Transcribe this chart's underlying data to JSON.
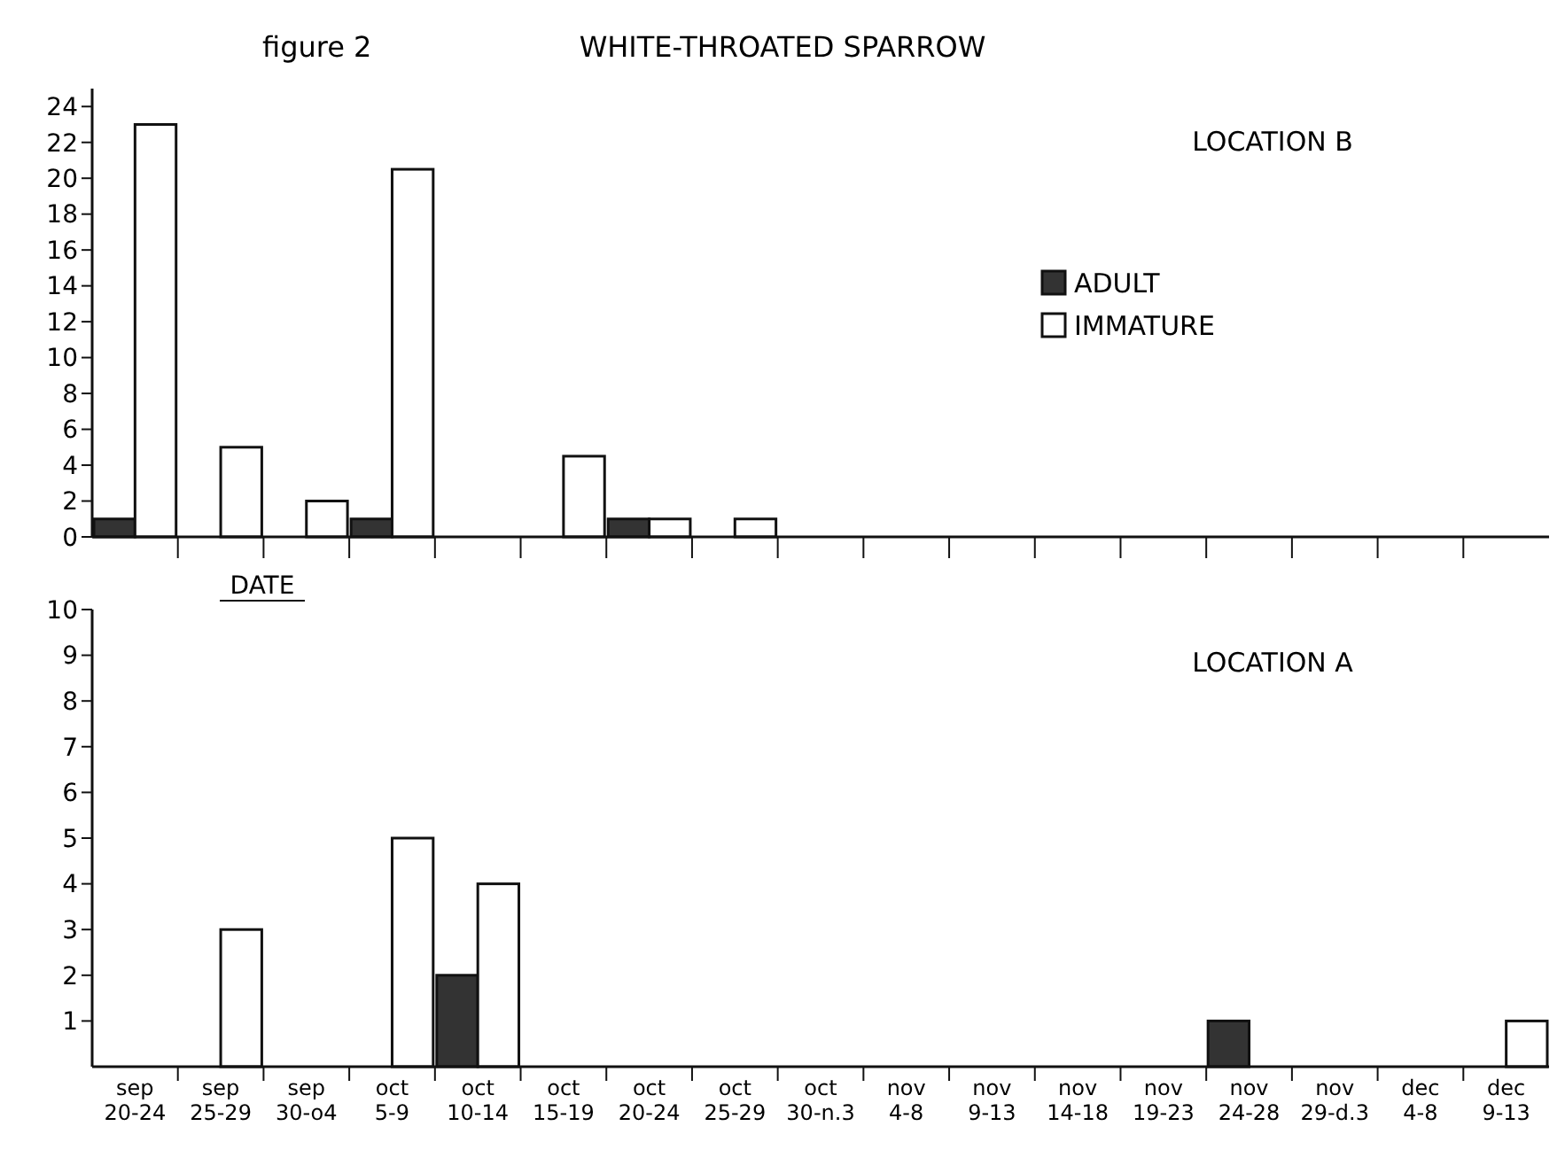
{
  "chart_data": [
    {
      "type": "bar",
      "title": "WHITE-THROATED SPARROW",
      "subtitle": "LOCATION B",
      "xlabel": "DATE",
      "annotations": [
        "figure 2"
      ],
      "categories": [
        null,
        null,
        null,
        null,
        null,
        null,
        null,
        null,
        null,
        null,
        null,
        null,
        null,
        null,
        null,
        null,
        null
      ],
      "series": [
        {
          "name": "ADULT",
          "color": "#333333",
          "values": [
            1,
            0,
            0,
            1,
            0,
            0,
            1,
            0,
            0,
            0,
            0,
            0,
            0,
            0,
            0,
            0,
            0
          ]
        },
        {
          "name": "IMMATURE",
          "color": "#ffffff",
          "values": [
            23,
            5,
            2,
            20.5,
            0,
            4.5,
            1,
            1,
            0,
            0,
            0,
            0,
            0,
            0,
            0,
            0,
            0
          ]
        }
      ],
      "ylim": [
        0,
        25
      ],
      "yticks": [
        0,
        2,
        4,
        6,
        8,
        10,
        12,
        14,
        16,
        18,
        20,
        22,
        24
      ],
      "tick_labels": "y",
      "legend": "right"
    },
    {
      "type": "bar",
      "subtitle": "LOCATION A",
      "categories": [
        "sep 20-24",
        "sep 25-29",
        "sep 30-o4",
        "oct 5-9",
        "oct 10-14",
        "oct 15-19",
        "oct 20-24",
        "oct 25-29",
        "oct 30-n.3",
        "nov 4-8",
        "nov 9-13",
        "nov 14-18",
        "nov 19-23",
        "nov 24-28",
        "nov 29-d.3",
        "dec 4-8",
        "dec 9-13"
      ],
      "series": [
        {
          "color": "#333333",
          "values": [
            0,
            0,
            0,
            0,
            2,
            0,
            0,
            0,
            0,
            0,
            0,
            0,
            0,
            1,
            0,
            0,
            0
          ]
        },
        {
          "color": "#ffffff",
          "values": [
            0,
            3,
            0,
            5,
            4,
            0,
            0,
            0,
            0,
            0,
            0,
            0,
            0,
            0,
            0,
            0,
            1
          ]
        }
      ],
      "ylim": [
        0,
        10
      ],
      "yticks": [
        1,
        2,
        3,
        4,
        5,
        6,
        7,
        8,
        9,
        10
      ]
    }
  ]
}
